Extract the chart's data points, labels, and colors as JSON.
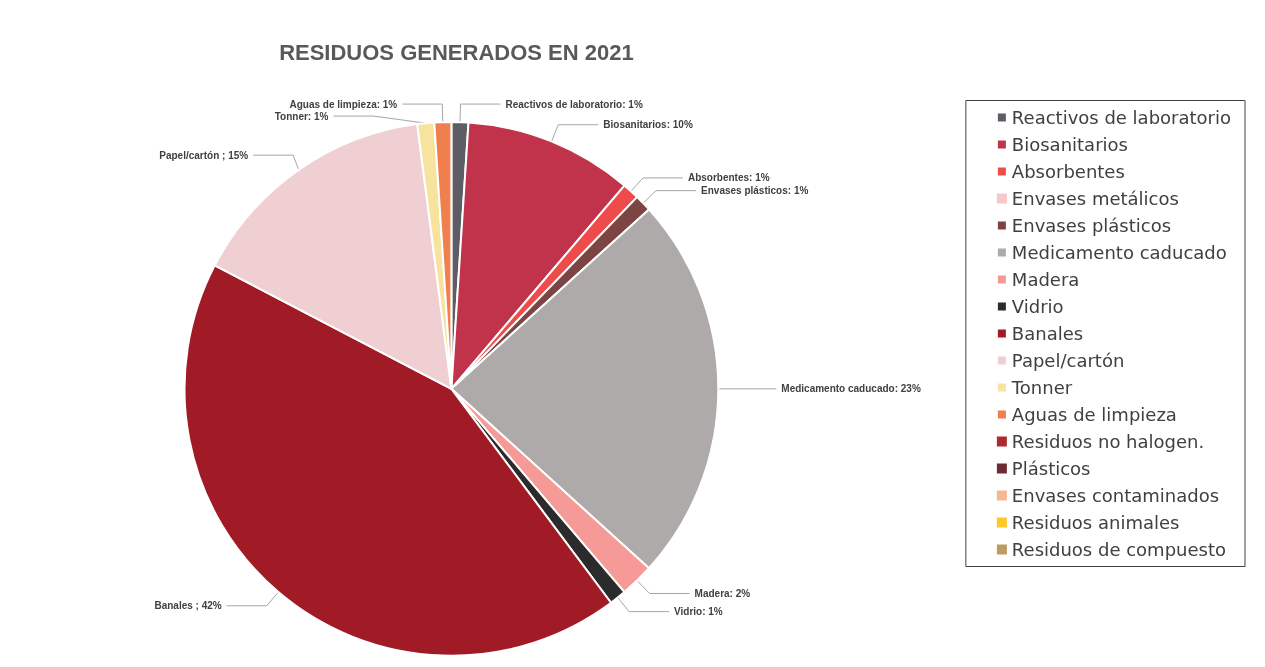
{
  "chart_data": {
    "type": "pie",
    "title": "RESIDUOS GENERADOS EN 2021",
    "categories": [
      "Reactivos de laboratorio",
      "Biosanitarios",
      "Absorbentes",
      "Envases metálicos",
      "Envases plásticos",
      "Medicamento caducado",
      "Madera",
      "Vidrio",
      "Banales",
      "Papel/cartón",
      "Tonner",
      "Aguas de limpieza",
      "Residuos no halogen.",
      "Plásticos",
      "Envases contaminados",
      "Residuos animales",
      "Residuos de compuesto"
    ],
    "values": [
      1,
      10,
      1,
      0,
      1,
      23,
      2,
      1,
      42,
      15,
      1,
      1,
      0,
      0,
      0,
      0,
      0
    ],
    "value_labels": [
      "Reactivos de laboratorio: 1%",
      "Biosanitarios: 10%",
      "Absorbentes: 1%",
      null,
      "Envases plásticos: 1%",
      "Medicamento caducado: 23%",
      "Madera: 2%",
      "Vidrio: 1%",
      "Banales ; 42%",
      "Papel/cartón ; 15%",
      "Tonner: 1%",
      "Aguas de limpieza: 1%",
      null,
      null,
      null,
      null,
      null
    ],
    "colors": [
      "#5e5d66",
      "#c0334b",
      "#ee4b4b",
      "#f8c8c8",
      "#7d4444",
      "#aeaaaa",
      "#f59a96",
      "#2b2b2b",
      "#a01b26",
      "#efcfd2",
      "#f7e39e",
      "#ef7f4c",
      "#ab2b30",
      "#6b2b30",
      "#f6b88e",
      "#ffc825",
      "#bc9a64"
    ],
    "legend": "right"
  }
}
